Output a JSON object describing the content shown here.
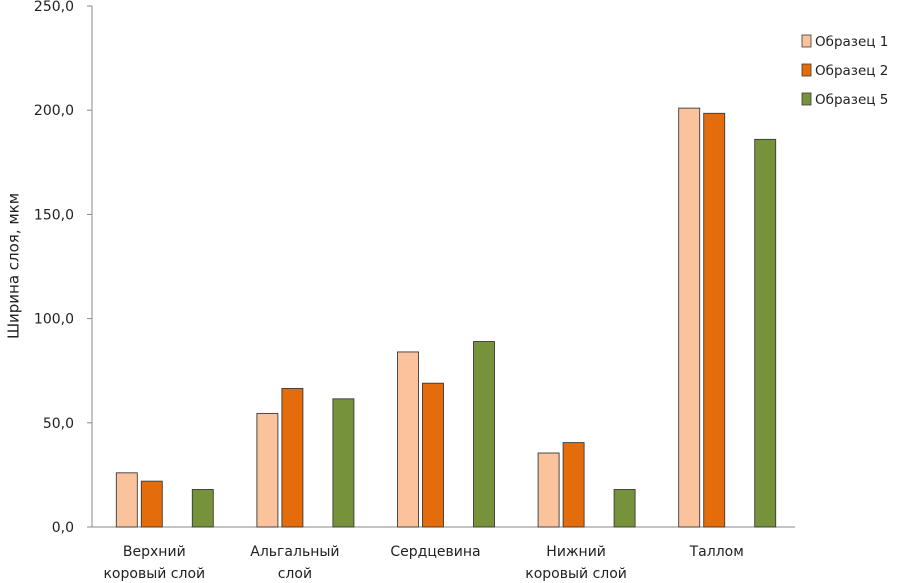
{
  "chart_data": {
    "type": "bar",
    "title": "",
    "xlabel": "",
    "ylabel": "Ширина слоя, мкм",
    "ylim": [
      0,
      250
    ],
    "yticks": [
      "0,0",
      "50,0",
      "100,0",
      "150,0",
      "200,0",
      "250,0"
    ],
    "ytick_values": [
      0,
      50,
      100,
      150,
      200,
      250
    ],
    "grid": false,
    "legend_position": "top-right",
    "categories": [
      [
        "Верхний",
        "коровый  слой"
      ],
      [
        "Альгальный",
        "слой"
      ],
      [
        "Сердцевина"
      ],
      [
        "Нижний",
        "коровый  слой"
      ],
      [
        "Таллом"
      ]
    ],
    "series": [
      {
        "name": "Образец 1",
        "color": "#FBC39C",
        "values": [
          26,
          54.5,
          84,
          35.5,
          201
        ]
      },
      {
        "name": "Образец 2",
        "color": "#E46C0A",
        "values": [
          22,
          66.5,
          69,
          40.5,
          198.5
        ]
      },
      {
        "name": "Образец 5",
        "color": "#76933C",
        "values": [
          18,
          61.5,
          89,
          18,
          186
        ]
      }
    ]
  }
}
